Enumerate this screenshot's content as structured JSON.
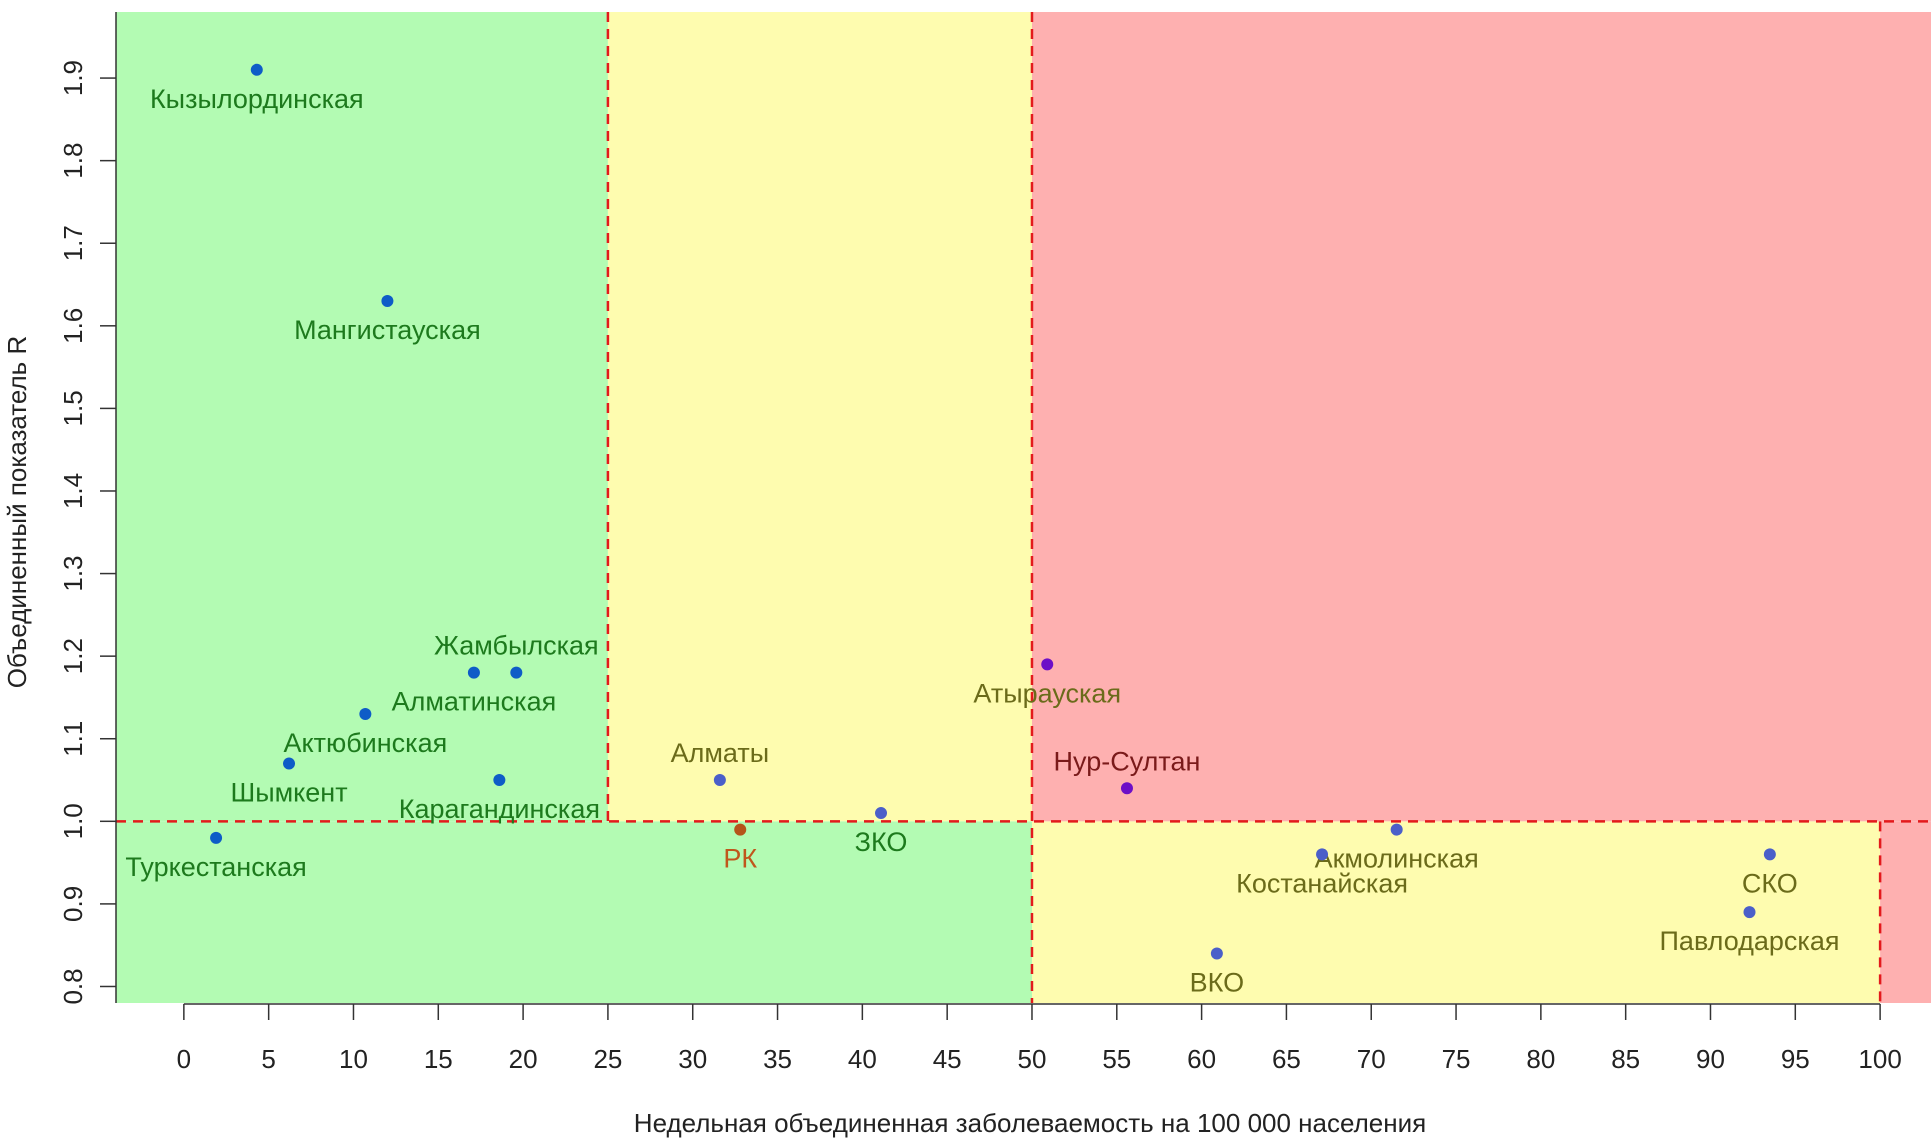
{
  "chart_data": {
    "type": "scatter",
    "title": "",
    "xlabel": "Недельная объединенная заболеваемость на 100 000 населения",
    "ylabel": "Объединенный показатель R",
    "xlim": [
      -4,
      103
    ],
    "ylim": [
      0.78,
      1.98
    ],
    "x_ticks": [
      "0",
      "5",
      "10",
      "15",
      "20",
      "25",
      "30",
      "35",
      "40",
      "45",
      "50",
      "55",
      "60",
      "65",
      "70",
      "75",
      "80",
      "85",
      "90",
      "95",
      "100"
    ],
    "y_ticks": [
      "0.8",
      "0.9",
      "1.0",
      "1.1",
      "1.2",
      "1.3",
      "1.4",
      "1.5",
      "1.6",
      "1.7",
      "1.8",
      "1.9"
    ],
    "grid": false,
    "zones": [
      {
        "x": [
          -4,
          25
        ],
        "y": [
          1.0,
          1.98
        ],
        "color": "#b3fbb3"
      },
      {
        "x": [
          -4,
          50
        ],
        "y": [
          0.78,
          1.0
        ],
        "color": "#b3fbb3"
      },
      {
        "x": [
          25,
          50
        ],
        "y": [
          1.0,
          1.98
        ],
        "color": "#fefcaf"
      },
      {
        "x": [
          50,
          100
        ],
        "y": [
          0.78,
          1.0
        ],
        "color": "#fefcaf"
      },
      {
        "x": [
          50,
          103
        ],
        "y": [
          1.0,
          1.98
        ],
        "color": "#feb0b0"
      },
      {
        "x": [
          100,
          103
        ],
        "y": [
          0.78,
          1.0
        ],
        "color": "#feb0b0"
      }
    ],
    "threshold_lines": [
      {
        "x": 25,
        "y_from": 1.0,
        "y_to": 1.98
      },
      {
        "x": 50,
        "y_from": 0.78,
        "y_to": 1.98
      },
      {
        "x": 100,
        "y_from": 0.78,
        "y_to": 1.0
      },
      {
        "y": 1.0,
        "x_from": -4,
        "x_to": 103
      }
    ],
    "threshold_color": "#e31a1c",
    "points": [
      {
        "label": "Кызылординская",
        "x": 4.3,
        "y": 1.91,
        "label_side": "below",
        "point_color": "#0e5cc7",
        "label_color": "#1d7a1d"
      },
      {
        "label": "Мангистауская",
        "x": 12.0,
        "y": 1.63,
        "label_side": "below",
        "point_color": "#0e5cc7",
        "label_color": "#1d7a1d"
      },
      {
        "label": "Жамбылская",
        "x": 19.6,
        "y": 1.18,
        "label_side": "above",
        "point_color": "#0e5cc7",
        "label_color": "#1d7a1d"
      },
      {
        "label": "Алматинская",
        "x": 17.1,
        "y": 1.18,
        "label_side": "below",
        "point_color": "#0e5cc7",
        "label_color": "#1d7a1d"
      },
      {
        "label": "Актюбинская",
        "x": 10.7,
        "y": 1.13,
        "label_side": "below",
        "point_color": "#0e5cc7",
        "label_color": "#1d7a1d"
      },
      {
        "label": "Шымкент",
        "x": 6.2,
        "y": 1.07,
        "label_side": "below",
        "point_color": "#0e5cc7",
        "label_color": "#1d7a1d"
      },
      {
        "label": "Карагандинская",
        "x": 18.6,
        "y": 1.05,
        "label_side": "below",
        "point_color": "#0e5cc7",
        "label_color": "#1d7a1d"
      },
      {
        "label": "Туркестанская",
        "x": 1.9,
        "y": 0.98,
        "label_side": "below",
        "point_color": "#0e5cc7",
        "label_color": "#1d7a1d"
      },
      {
        "label": "Алматы",
        "x": 31.6,
        "y": 1.05,
        "label_side": "above",
        "point_color": "#4b5fc9",
        "label_color": "#6b6b1a"
      },
      {
        "label": "РК",
        "x": 32.8,
        "y": 0.99,
        "label_side": "below",
        "point_color": "#b5541a",
        "label_color": "#c0561c"
      },
      {
        "label": "ЗКО",
        "x": 41.1,
        "y": 1.01,
        "label_side": "below",
        "point_color": "#4b5fc9",
        "label_color": "#1d7a1d"
      },
      {
        "label": "Атырауская",
        "x": 50.9,
        "y": 1.19,
        "label_side": "below",
        "point_color": "#6d0fc7",
        "label_color": "#6b6b1a"
      },
      {
        "label": "Нур-Султан",
        "x": 55.6,
        "y": 1.04,
        "label_side": "above",
        "point_color": "#6d0fc7",
        "label_color": "#7a1a1a"
      },
      {
        "label": "Акмолинская",
        "x": 71.5,
        "y": 0.99,
        "label_side": "below",
        "point_color": "#4b5fc9",
        "label_color": "#6b6b1a"
      },
      {
        "label": "Костанайская",
        "x": 67.1,
        "y": 0.96,
        "label_side": "below",
        "point_color": "#4b5fc9",
        "label_color": "#6b6b1a"
      },
      {
        "label": "ВКО",
        "x": 60.9,
        "y": 0.84,
        "label_side": "below",
        "point_color": "#4b5fc9",
        "label_color": "#6b6b1a"
      },
      {
        "label": "СКО",
        "x": 93.5,
        "y": 0.96,
        "label_side": "below",
        "point_color": "#4b5fc9",
        "label_color": "#6b6b1a"
      },
      {
        "label": "Павлодарская",
        "x": 92.3,
        "y": 0.89,
        "label_side": "below",
        "point_color": "#4b5fc9",
        "label_color": "#6b6b1a"
      }
    ]
  }
}
